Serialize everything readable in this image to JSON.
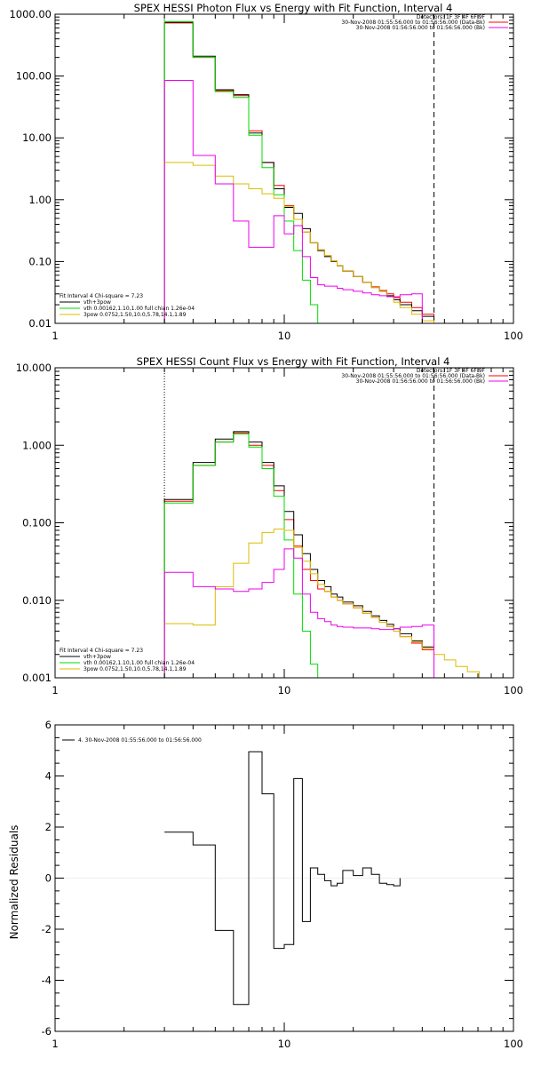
{
  "colors": {
    "total": "#000000",
    "thermal": "#00dd00",
    "powerlaw": "#ddbb00",
    "data": "#ff0000",
    "background": "#ee00ee",
    "residuals": "#000000"
  },
  "chart_data": [
    {
      "id": "photon",
      "type": "line",
      "title": "SPEX HESSI Photon Flux vs Energy with Fit Function, Interval 4",
      "xlabel": "",
      "ylabel": "",
      "xscale": "log",
      "yscale": "log",
      "xlim": [
        1,
        100
      ],
      "ylim": [
        0.01,
        1000
      ],
      "xticks": [
        {
          "v": 1,
          "label": "1"
        },
        {
          "v": 10,
          "label": "10"
        },
        {
          "v": 100,
          "label": "100"
        }
      ],
      "yticks": [
        {
          "v": 1000,
          "label": "1000.00"
        },
        {
          "v": 100,
          "label": "100.00"
        },
        {
          "v": 10,
          "label": "10.00"
        },
        {
          "v": 1,
          "label": "1.00"
        },
        {
          "v": 0.1,
          "label": "0.10"
        },
        {
          "v": 0.01,
          "label": "0.01"
        }
      ],
      "fit_range": [
        3,
        45
      ],
      "grid": false,
      "legend_top": {
        "position": "top-right",
        "detectors": "Detectors: 1F 3F 4F 6F 9F",
        "entries": [
          {
            "label": "30-Nov-2008 01:55:56.000 to 01:56:56.000 (Data-Bk)",
            "color_key": "data"
          },
          {
            "label": "30-Nov-2008 01:56:56.000 to 01:56:56.000 (Bk)",
            "color_key": "background"
          }
        ]
      },
      "legend_bottom": {
        "position": "bottom-left",
        "header": "Fit Interval  4    Chi-square = 7.23",
        "entries": [
          {
            "label": "vth+3pow",
            "color_key": "total"
          },
          {
            "label": "vth 0.00162,1.10,1.00  full chian 1.26e-04",
            "color_key": "thermal"
          },
          {
            "label": "3pow 0.0752,1.50,10.0,5.78,14.1,1.89",
            "color_key": "powerlaw"
          }
        ]
      },
      "edges": [
        3,
        4,
        5,
        6,
        7,
        8,
        9,
        10,
        11,
        12,
        13,
        14,
        15,
        16,
        17,
        18,
        20,
        22,
        24,
        26,
        28,
        30,
        32,
        36,
        40,
        45,
        50,
        56
      ],
      "series": [
        {
          "key": "data",
          "values": [
            720,
            200,
            58,
            48,
            13,
            4,
            1.7,
            0.8,
            0.48,
            0.3,
            0.2,
            0.155,
            0.125,
            0.102,
            0.085,
            0.07,
            0.057,
            0.046,
            0.039,
            0.034,
            0.03,
            0.026,
            0.022,
            0.018,
            0.014,
            null,
            null
          ]
        },
        {
          "key": "total",
          "values": [
            740,
            210,
            60,
            50,
            12,
            4,
            1.5,
            0.75,
            0.6,
            0.34,
            0.2,
            0.15,
            0.12,
            0.1,
            0.085,
            0.07,
            0.057,
            0.046,
            0.038,
            0.033,
            0.028,
            0.024,
            0.02,
            0.016,
            0.013,
            null,
            null
          ]
        },
        {
          "key": "thermal",
          "values": [
            760,
            200,
            56,
            45,
            11,
            3.3,
            1.2,
            0.45,
            0.15,
            0.05,
            0.02,
            0.005,
            null,
            null,
            null,
            null,
            null,
            null,
            null,
            null,
            null,
            null,
            null,
            null,
            null,
            null,
            null
          ]
        },
        {
          "key": "powerlaw",
          "values": [
            4,
            3.6,
            2.4,
            1.8,
            1.5,
            1.25,
            1.05,
            0.78,
            0.48,
            0.3,
            0.2,
            0.155,
            0.125,
            0.102,
            0.085,
            0.07,
            0.057,
            0.046,
            0.038,
            0.033,
            0.027,
            0.022,
            0.018,
            0.014,
            0.011,
            0.009,
            0.007
          ]
        },
        {
          "key": "background",
          "values": [
            85,
            5.2,
            1.8,
            0.45,
            0.17,
            0.17,
            0.55,
            0.28,
            0.38,
            0.12,
            0.055,
            0.042,
            0.04,
            0.04,
            0.037,
            0.035,
            0.033,
            0.031,
            0.029,
            0.028,
            0.027,
            0.027,
            0.029,
            0.03,
            null,
            null,
            null
          ]
        }
      ]
    },
    {
      "id": "count",
      "type": "line",
      "title": "SPEX HESSI Count Flux vs Energy with Fit Function, Interval 4",
      "xlabel": "",
      "ylabel": "",
      "xscale": "log",
      "yscale": "log",
      "xlim": [
        1,
        100
      ],
      "ylim": [
        0.001,
        10
      ],
      "xticks": [
        {
          "v": 1,
          "label": "1"
        },
        {
          "v": 10,
          "label": "10"
        },
        {
          "v": 100,
          "label": "100"
        }
      ],
      "yticks": [
        {
          "v": 10,
          "label": "10.000"
        },
        {
          "v": 1,
          "label": "1.000"
        },
        {
          "v": 0.1,
          "label": "0.100"
        },
        {
          "v": 0.01,
          "label": "0.010"
        },
        {
          "v": 0.001,
          "label": "0.001"
        }
      ],
      "fit_range": [
        3,
        45
      ],
      "grid": false,
      "legend_top": {
        "position": "top-right",
        "detectors": "Detectors: 1F 3F 4F 6F 9F",
        "entries": [
          {
            "label": "30-Nov-2008 01:55:56.000 to 01:56:56.000 (Data-Bk)",
            "color_key": "data"
          },
          {
            "label": "30-Nov-2008 01:56:56.000 to 01:56:56.000 (Bk)",
            "color_key": "background"
          }
        ]
      },
      "legend_bottom": {
        "position": "bottom-left",
        "header": "Fit Interval  4    Chi-square = 7.23",
        "entries": [
          {
            "label": "vth+3pow",
            "color_key": "total"
          },
          {
            "label": "vth 0.00162,1.10,1.00  full chian 1.26e-04",
            "color_key": "thermal"
          },
          {
            "label": "3pow 0.0752,1.50,10.0,5.78,14.1,1.89",
            "color_key": "powerlaw"
          }
        ]
      },
      "edges": [
        3,
        4,
        5,
        6,
        7,
        8,
        9,
        10,
        11,
        12,
        13,
        14,
        15,
        16,
        17,
        18,
        20,
        22,
        24,
        26,
        28,
        30,
        32,
        36,
        40,
        45,
        50,
        56,
        63,
        71,
        80
      ],
      "series": [
        {
          "key": "data",
          "values": [
            0.19,
            0.55,
            1.1,
            1.45,
            1.0,
            0.55,
            0.26,
            0.11,
            0.05,
            0.025,
            0.018,
            0.014,
            0.013,
            0.011,
            0.01,
            0.009,
            0.008,
            0.0068,
            0.006,
            0.0052,
            0.0046,
            0.004,
            0.0034,
            0.0028,
            0.0023,
            null,
            null,
            null,
            null,
            null
          ]
        },
        {
          "key": "total",
          "values": [
            0.2,
            0.6,
            1.2,
            1.5,
            1.1,
            0.6,
            0.3,
            0.14,
            0.07,
            0.04,
            0.025,
            0.018,
            0.015,
            0.012,
            0.011,
            0.0095,
            0.0085,
            0.0072,
            0.0063,
            0.0055,
            0.0049,
            0.0043,
            0.0037,
            0.003,
            0.0025,
            null,
            null,
            null,
            null,
            null
          ]
        },
        {
          "key": "thermal",
          "values": [
            0.18,
            0.55,
            1.1,
            1.4,
            0.95,
            0.5,
            0.22,
            0.06,
            0.012,
            0.004,
            0.0015,
            0.0007,
            null,
            null,
            null,
            null,
            null,
            null,
            null,
            null,
            null,
            null,
            null,
            null,
            null,
            null,
            null,
            null,
            null,
            null
          ]
        },
        {
          "key": "powerlaw",
          "values": [
            0.005,
            0.0048,
            0.015,
            0.03,
            0.055,
            0.075,
            0.083,
            0.08,
            0.048,
            0.032,
            0.022,
            0.016,
            0.013,
            0.011,
            0.01,
            0.009,
            0.008,
            0.0068,
            0.006,
            0.0052,
            0.0046,
            0.004,
            0.0034,
            0.0029,
            0.0024,
            0.002,
            0.0017,
            0.0014,
            0.0012,
            0.001
          ]
        },
        {
          "key": "background",
          "values": [
            0.023,
            0.015,
            0.014,
            0.013,
            0.014,
            0.017,
            0.025,
            0.046,
            0.035,
            0.012,
            0.007,
            0.0058,
            0.0053,
            0.0048,
            0.0046,
            0.0045,
            0.0044,
            0.0044,
            0.0043,
            0.0042,
            0.0042,
            0.0043,
            0.0045,
            0.0046,
            0.0048,
            null,
            null,
            null,
            null,
            null
          ]
        }
      ]
    },
    {
      "id": "resid",
      "type": "line",
      "title": "",
      "xlabel": "",
      "ylabel": "Normalized Residuals",
      "xscale": "log",
      "yscale": "linear",
      "xlim": [
        1,
        100
      ],
      "ylim": [
        -6,
        6
      ],
      "xticks": [
        {
          "v": 1,
          "label": "1"
        },
        {
          "v": 10,
          "label": "10"
        },
        {
          "v": 100,
          "label": "100"
        }
      ],
      "yticks": [
        {
          "v": 6,
          "label": "6"
        },
        {
          "v": 4,
          "label": "4"
        },
        {
          "v": 2,
          "label": "2"
        },
        {
          "v": 0,
          "label": "0"
        },
        {
          "v": -2,
          "label": "-2"
        },
        {
          "v": -4,
          "label": "-4"
        },
        {
          "v": -6,
          "label": "-6"
        }
      ],
      "grid": false,
      "legend": {
        "position": "top-left",
        "label": "4. 30-Nov-2008 01:55:56.000 to 01:56:56.000"
      },
      "edges": [
        3,
        4,
        5,
        6,
        7,
        8,
        9,
        10,
        11,
        12,
        13,
        14,
        15,
        16,
        17,
        18,
        20,
        22,
        24,
        26,
        28,
        30,
        32,
        36,
        40,
        45
      ],
      "series": [
        {
          "key": "residuals",
          "values": [
            1.8,
            1.3,
            -2.05,
            -4.95,
            4.95,
            3.3,
            -2.75,
            -2.6,
            3.9,
            -1.7,
            0.4,
            0.15,
            -0.1,
            -0.3,
            -0.2,
            0.3,
            0.1,
            0.4,
            0.15,
            -0.2,
            -0.25,
            -0.3
          ]
        }
      ]
    }
  ]
}
